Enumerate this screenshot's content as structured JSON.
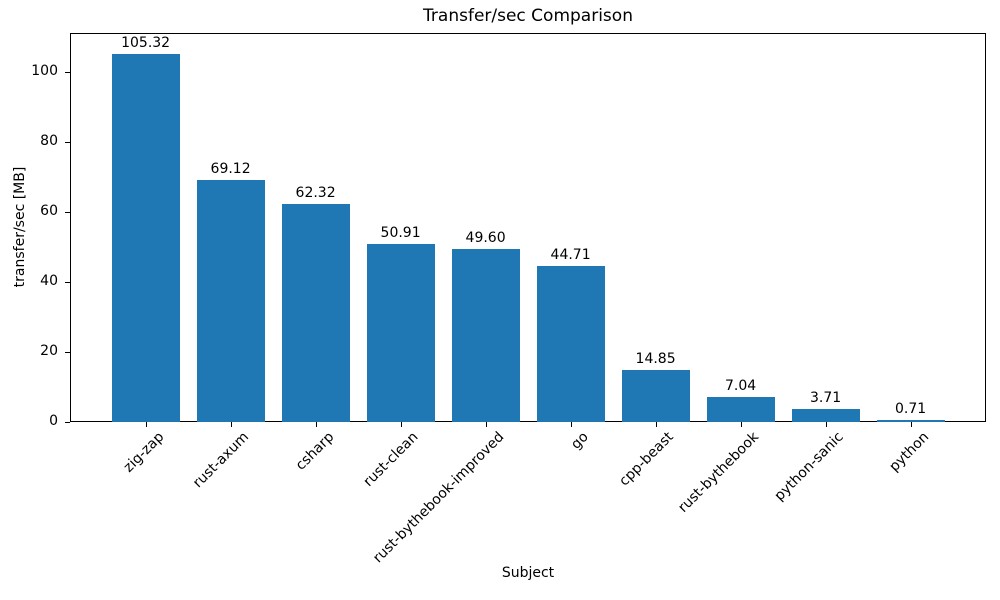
{
  "chart_data": {
    "type": "bar",
    "title": "Transfer/sec Comparison",
    "xlabel": "Subject",
    "ylabel": "transfer/sec [MB]",
    "categories": [
      "zig-zap",
      "rust-axum",
      "csharp",
      "rust-clean",
      "rust-bythebook-improved",
      "go",
      "cpp-beast",
      "rust-bythebook",
      "python-sanic",
      "python"
    ],
    "values": [
      105.32,
      69.12,
      62.32,
      50.91,
      49.6,
      44.71,
      14.85,
      7.04,
      3.71,
      0.71
    ],
    "value_labels": [
      "105.32",
      "69.12",
      "62.32",
      "50.91",
      "49.60",
      "44.71",
      "14.85",
      "7.04",
      "3.71",
      "0.71"
    ],
    "yticks": [
      0,
      20,
      40,
      60,
      80,
      100
    ],
    "ylim": [
      0,
      111.25
    ],
    "bar_color": "#1f77b4",
    "grid": false,
    "legend_position": "none"
  }
}
